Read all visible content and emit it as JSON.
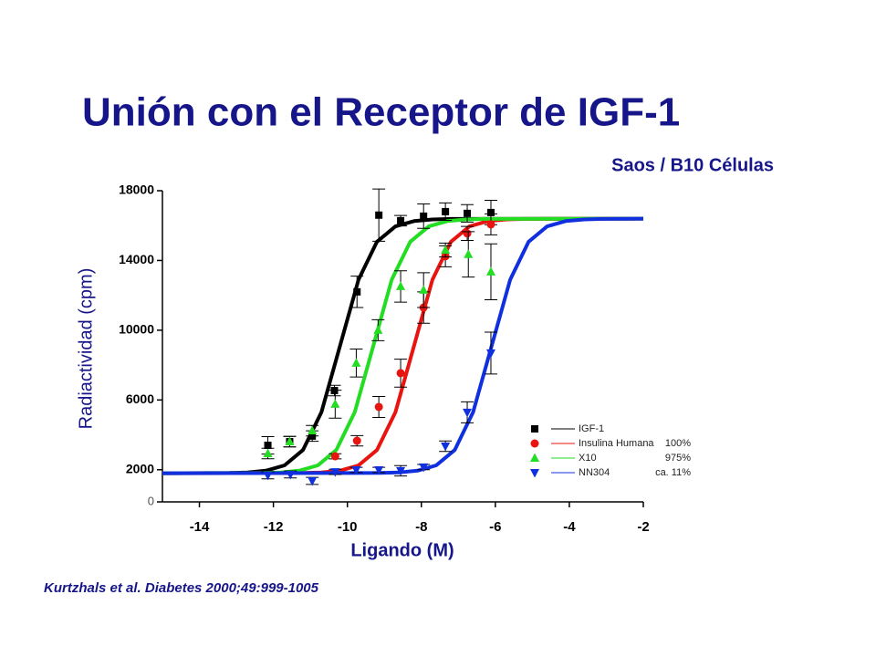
{
  "chart_data": {
    "type": "scatter",
    "title": "Unión con el Receptor de IGF-1",
    "subtitle": "Saos / B10 Células",
    "x_label": "Ligando (M)",
    "y_label": "Radiactividad (cpm)",
    "citation": "Kurtzhals et al. Diabetes 2000;49:999-1005",
    "xlim": [
      -15,
      -2
    ],
    "xticks": [
      -14,
      -12,
      -10,
      -8,
      -6,
      -4,
      -2
    ],
    "ylim": [
      0,
      18000
    ],
    "yticks": [
      0,
      2000,
      6000,
      10000,
      14000,
      18000
    ],
    "series": [
      {
        "name": "IGF-1",
        "color": "#000000",
        "marker": "square",
        "x": [
          -12.15,
          -11.56,
          -10.95,
          -10.35,
          -9.74,
          -9.15,
          -8.56,
          -7.94,
          -7.35,
          -6.76,
          -6.12
        ],
        "values": [
          3400,
          3610,
          3930,
          6540,
          12200,
          16600,
          16280,
          16540,
          16800,
          16700,
          16750
        ],
        "errors": [
          500,
          300,
          300,
          300,
          900,
          1500,
          300,
          700,
          500,
          500,
          700
        ],
        "fit_x": [
          -15,
          -13.2,
          -12.7,
          -12.2,
          -11.7,
          -11.2,
          -10.7,
          -10.2,
          -9.7,
          -9.2,
          -8.7,
          -8.2,
          -7.7,
          -7.2,
          -2
        ],
        "fit_y": [
          1800,
          1815,
          1847,
          1945,
          2248,
          3127,
          5304,
          9100,
          12896,
          15073,
          15952,
          16255,
          16353,
          16385,
          16400
        ]
      },
      {
        "name": "Insulina Humana",
        "legend_note": "100%",
        "color": "#e8140f",
        "marker": "circle",
        "x": [
          -10.33,
          -9.74,
          -9.15,
          -8.56,
          -7.94,
          -7.35,
          -6.76,
          -6.12
        ],
        "values": [
          2770,
          3660,
          5600,
          7540,
          11300,
          14240,
          15550,
          16070
        ],
        "errors": [
          150,
          300,
          600,
          800,
          900,
          600,
          400,
          600
        ],
        "fit_x": [
          -15,
          -11.2,
          -10.7,
          -10.2,
          -9.7,
          -9.2,
          -8.7,
          -8.2,
          -7.7,
          -7.2,
          -6.7,
          -6.2,
          -5.7,
          -5.2,
          -2
        ],
        "fit_y": [
          1800,
          1815,
          1847,
          1945,
          2248,
          3127,
          5304,
          9100,
          12896,
          15073,
          15952,
          16255,
          16353,
          16385,
          16400
        ]
      },
      {
        "name": "X10",
        "legend_note": "975%",
        "color": "#22dd22",
        "marker": "triangle-up",
        "x": [
          -12.15,
          -11.56,
          -10.95,
          -10.33,
          -9.76,
          -9.17,
          -8.56,
          -7.94,
          -7.35,
          -6.73,
          -6.12
        ],
        "values": [
          2930,
          3610,
          4240,
          5760,
          8120,
          10000,
          12510,
          12300,
          14600,
          14350,
          13350
        ],
        "errors": [
          300,
          300,
          300,
          800,
          800,
          600,
          900,
          1000,
          400,
          1300,
          1600
        ],
        "fit_x": [
          -15,
          -12.3,
          -11.8,
          -11.3,
          -10.8,
          -10.3,
          -9.8,
          -9.3,
          -8.8,
          -8.3,
          -7.8,
          -7.3,
          -6.8,
          -6.3,
          -2
        ],
        "fit_y": [
          1800,
          1815,
          1847,
          1945,
          2248,
          3127,
          5304,
          9100,
          12896,
          15073,
          15952,
          16255,
          16353,
          16385,
          16400
        ]
      },
      {
        "name": "NN304",
        "legend_note": "ca. 11%",
        "color": "#1030e0",
        "marker": "triangle-down",
        "x": [
          -12.15,
          -11.54,
          -10.95,
          -10.33,
          -9.76,
          -9.15,
          -8.56,
          -7.94,
          -7.35,
          -6.76,
          -6.12
        ],
        "values": [
          1680,
          1730,
          1360,
          1880,
          1990,
          1990,
          1940,
          2150,
          3350,
          5290,
          8690
        ],
        "errors": [
          200,
          200,
          200,
          150,
          150,
          150,
          300,
          150,
          300,
          600,
          1200
        ],
        "fit_x": [
          -15,
          -9.1,
          -8.6,
          -8.1,
          -7.6,
          -7.1,
          -6.6,
          -6.1,
          -5.6,
          -5.1,
          -4.6,
          -4.1,
          -3.6,
          -3.1,
          -2
        ],
        "fit_y": [
          1800,
          1815,
          1847,
          1945,
          2248,
          3127,
          5304,
          9100,
          12896,
          15073,
          15952,
          16255,
          16353,
          16385,
          16400
        ]
      }
    ]
  }
}
